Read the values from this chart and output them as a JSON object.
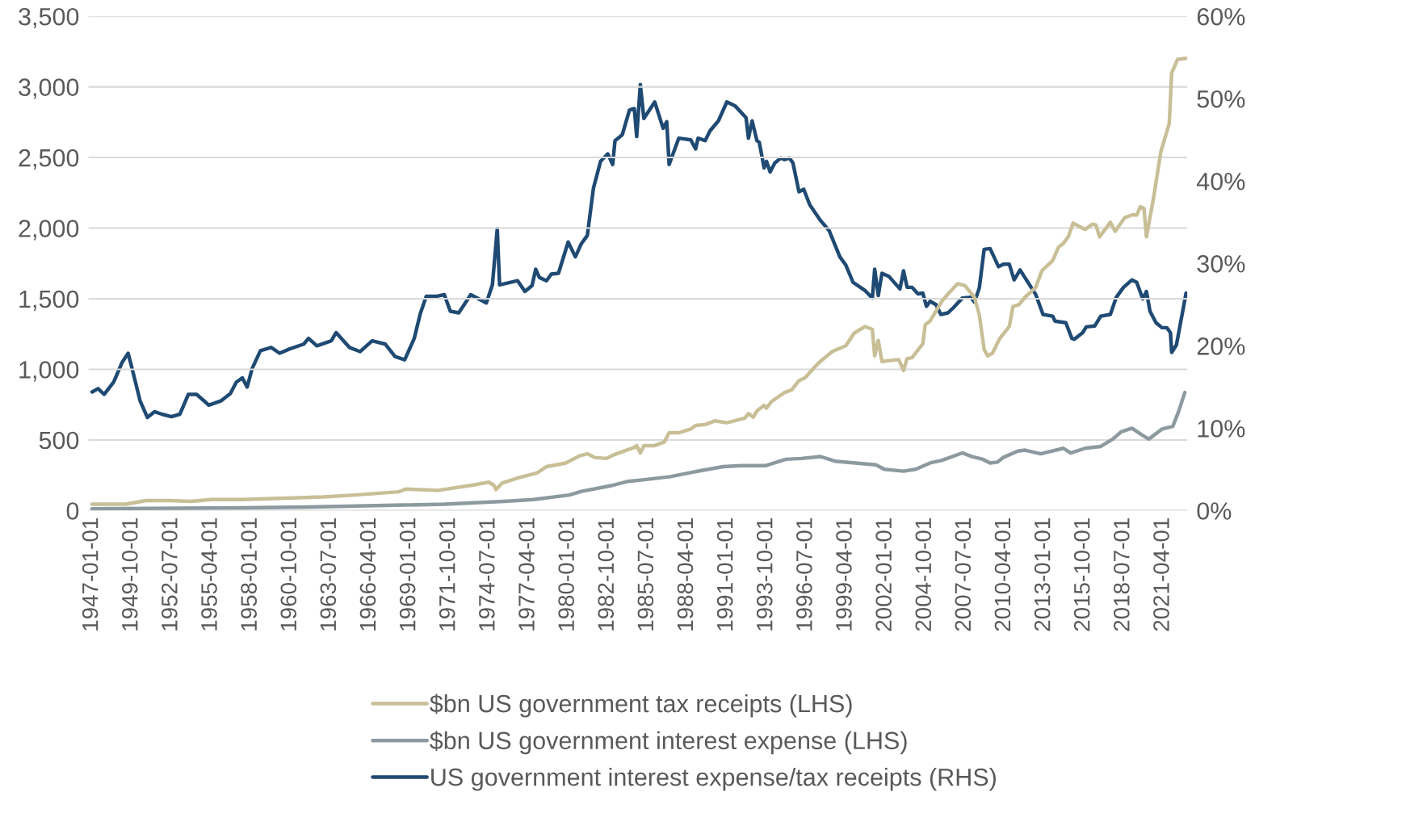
{
  "chart_data": {
    "type": "line",
    "xlim": [
      "1946-10",
      "2022-12"
    ],
    "xticks": [
      "1947-01-01",
      "1949-10-01",
      "1952-07-01",
      "1955-04-01",
      "1958-01-01",
      "1960-10-01",
      "1963-07-01",
      "1966-04-01",
      "1969-01-01",
      "1971-10-01",
      "1974-07-01",
      "1977-04-01",
      "1980-01-01",
      "1982-10-01",
      "1985-07-01",
      "1988-04-01",
      "1991-01-01",
      "1993-10-01",
      "1996-07-01",
      "1999-04-01",
      "2002-01-01",
      "2004-10-01",
      "2007-07-01",
      "2010-04-01",
      "2013-01-01",
      "2015-10-01",
      "2018-07-01",
      "2021-04-01"
    ],
    "ylim": [
      0,
      3500
    ],
    "yticks": [
      0,
      500,
      {
        "value": 1000,
        "label": "1,000"
      },
      {
        "value": 1500,
        "label": "1,500"
      },
      {
        "value": 2000,
        "label": "2,000"
      },
      {
        "value": 2500,
        "label": "2,500"
      },
      {
        "value": 3000,
        "label": "3,000"
      },
      {
        "value": 3500,
        "label": "3,500"
      }
    ],
    "y2lim": [
      0,
      60
    ],
    "y2ticks": [
      {
        "value": 0,
        "label": "0%"
      },
      {
        "value": 10,
        "label": "10%"
      },
      {
        "value": 20,
        "label": "20%"
      },
      {
        "value": 30,
        "label": "30%"
      },
      {
        "value": 40,
        "label": "40%"
      },
      {
        "value": 50,
        "label": "50%"
      },
      {
        "value": 60,
        "label": "60%"
      }
    ],
    "grid": "y",
    "legend": "bottom",
    "line_style": "solid",
    "marker": "none",
    "series": [
      {
        "name": "$bn US government tax receipts (LHS)",
        "color": "#c8bf97",
        "axis": "y",
        "x": [
          "1947-01",
          "1949-05",
          "1950-10",
          "1952-06",
          "1953-11",
          "1955-04",
          "1957-06",
          "1959-03",
          "1963-01",
          "1965-04",
          "1968-04",
          "1968-10",
          "1971-01",
          "1973-06",
          "1974-07",
          "1974-11",
          "1975-01",
          "1975-06",
          "1976-08",
          "1977-11",
          "1978-07",
          "1979-11",
          "1980-11",
          "1981-05",
          "1981-11",
          "1982-09",
          "1983-03",
          "1984-08",
          "1984-10",
          "1985-01",
          "1985-04",
          "1986-01",
          "1986-09",
          "1987-01",
          "1987-09",
          "1988-07",
          "1988-11",
          "1989-07",
          "1990-03",
          "1991-01",
          "1992-04",
          "1992-07",
          "1992-11",
          "1993-02",
          "1993-08",
          "1993-10",
          "1994-02",
          "1995-01",
          "1995-07",
          "1996-01",
          "1996-06",
          "1997-05",
          "1998-05",
          "1999-04",
          "1999-11",
          "2000-08",
          "2001-02",
          "2001-04",
          "2001-07",
          "2001-10",
          "2002-12",
          "2003-04",
          "2003-07",
          "2003-11",
          "2004-08",
          "2004-10",
          "2005-02",
          "2005-12",
          "2006-06",
          "2007-01",
          "2007-07",
          "2008-03",
          "2008-07",
          "2008-11",
          "2009-02",
          "2009-06",
          "2009-12",
          "2010-08",
          "2010-11",
          "2011-04",
          "2011-09",
          "2012-06",
          "2012-11",
          "2013-08",
          "2014-01",
          "2014-05",
          "2014-09",
          "2015-01",
          "2015-11",
          "2016-05",
          "2016-08",
          "2016-11",
          "2017-08",
          "2017-12",
          "2018-08",
          "2019-02",
          "2019-06",
          "2019-09",
          "2019-12",
          "2020-02",
          "2020-08",
          "2021-02",
          "2021-09",
          "2021-11",
          "2022-04",
          "2022-11"
        ],
        "values": [
          45,
          45,
          71,
          71,
          65,
          78,
          78,
          84,
          97,
          110,
          133,
          152,
          143,
          181,
          201,
          181,
          149,
          194,
          233,
          266,
          311,
          337,
          389,
          402,
          376,
          369,
          395,
          447,
          460,
          408,
          460,
          460,
          486,
          551,
          551,
          577,
          603,
          609,
          635,
          622,
          655,
          687,
          661,
          706,
          745,
          726,
          771,
          836,
          855,
          920,
          940,
          1043,
          1128,
          1167,
          1257,
          1303,
          1283,
          1095,
          1205,
          1056,
          1069,
          992,
          1076,
          1082,
          1180,
          1316,
          1342,
          1484,
          1543,
          1607,
          1594,
          1510,
          1387,
          1141,
          1095,
          1115,
          1218,
          1303,
          1445,
          1458,
          1510,
          1581,
          1698,
          1769,
          1866,
          1892,
          1938,
          2035,
          1990,
          2028,
          2022,
          1938,
          2041,
          1977,
          2074,
          2093,
          2093,
          2152,
          2139,
          1938,
          2216,
          2541,
          2741,
          3098,
          3195,
          3202
        ]
      },
      {
        "name": "$bn US government interest expense (LHS)",
        "color": "#8c9aa0",
        "axis": "y",
        "x": [
          "1947-01",
          "1957-06",
          "1962-01",
          "1968-09",
          "1971-06",
          "1975-08",
          "1977-08",
          "1980-02",
          "1980-12",
          "1982-12",
          "1984-03",
          "1985-06",
          "1987-02",
          "1988-05",
          "1989-05",
          "1990-10",
          "1992-01",
          "1993-09",
          "1995-02",
          "1996-03",
          "1997-07",
          "1998-07",
          "2001-05",
          "2001-12",
          "2003-04",
          "2004-02",
          "2005-02",
          "2005-12",
          "2007-05",
          "2008-01",
          "2008-10",
          "2009-04",
          "2009-10",
          "2010-03",
          "2011-03",
          "2011-09",
          "2012-10",
          "2014-05",
          "2014-11",
          "2015-11",
          "2016-12",
          "2017-10",
          "2018-05",
          "2019-02",
          "2019-10",
          "2020-04",
          "2021-03",
          "2021-12",
          "2022-05",
          "2022-10"
        ],
        "values": [
          13,
          19,
          25,
          39,
          45,
          65,
          78,
          110,
          136,
          175,
          207,
          220,
          240,
          266,
          285,
          311,
          318,
          318,
          363,
          369,
          382,
          350,
          324,
          292,
          279,
          292,
          337,
          356,
          408,
          382,
          363,
          337,
          343,
          376,
          421,
          428,
          402,
          441,
          408,
          441,
          454,
          506,
          557,
          583,
          538,
          506,
          577,
          596,
          706,
          836
        ]
      },
      {
        "name": "US government interest expense/tax receipts (RHS)",
        "color": "#1f4a73",
        "axis": "y2",
        "x": [
          "1947-01",
          "1947-06",
          "1947-11",
          "1948-07",
          "1949-02",
          "1949-07",
          "1949-10",
          "1950-05",
          "1950-11",
          "1951-05",
          "1951-11",
          "1952-07",
          "1953-02",
          "1953-09",
          "1954-04",
          "1955-02",
          "1955-12",
          "1956-08",
          "1957-01",
          "1957-06",
          "1957-10",
          "1958-02",
          "1958-09",
          "1959-06",
          "1960-01",
          "1960-09",
          "1961-09",
          "1962-01",
          "1962-08",
          "1963-08",
          "1963-12",
          "1964-11",
          "1965-08",
          "1966-06",
          "1967-05",
          "1968-01",
          "1968-09",
          "1969-05",
          "1969-10",
          "1970-03",
          "1970-11",
          "1971-06",
          "1971-11",
          "1972-06",
          "1973-04",
          "1974-05",
          "1974-10",
          "1975-02",
          "1975-04",
          "1976-07",
          "1977-01",
          "1977-07",
          "1977-10",
          "1978-01",
          "1978-07",
          "1978-11",
          "1979-05",
          "1980-01",
          "1980-07",
          "1980-12",
          "1981-05",
          "1981-10",
          "1982-04",
          "1982-10",
          "1983-02",
          "1983-04",
          "1983-10",
          "1984-04",
          "1984-08",
          "1984-10",
          "1985-01",
          "1985-04",
          "1986-01",
          "1986-08",
          "1986-11",
          "1987-01",
          "1987-09",
          "1988-07",
          "1988-11",
          "1989-01",
          "1989-07",
          "1989-11",
          "1990-06",
          "1991-01",
          "1991-08",
          "1992-05",
          "1992-07",
          "1992-10",
          "1993-02",
          "1993-04",
          "1993-08",
          "1993-10",
          "1994-01",
          "1994-05",
          "1994-10",
          "1995-01",
          "1995-05",
          "1995-08",
          "1996-01",
          "1996-05",
          "1996-10",
          "1997-07",
          "1998-02",
          "1998-11",
          "1999-04",
          "1999-10",
          "2000-08",
          "2001-02",
          "2001-04",
          "2001-07",
          "2001-10",
          "2002-04",
          "2003-01",
          "2003-04",
          "2003-07",
          "2003-11",
          "2004-04",
          "2004-08",
          "2004-11",
          "2005-02",
          "2005-07",
          "2005-11",
          "2006-05",
          "2006-10",
          "2007-05",
          "2007-12",
          "2008-03",
          "2008-07",
          "2008-11",
          "2009-04",
          "2009-11",
          "2010-03",
          "2010-08",
          "2010-12",
          "2011-05",
          "2012-06",
          "2012-12",
          "2013-08",
          "2013-10",
          "2014-07",
          "2014-12",
          "2015-02",
          "2015-09",
          "2015-12",
          "2016-07",
          "2016-12",
          "2017-08",
          "2018-01",
          "2018-07",
          "2019-02",
          "2019-06",
          "2019-11",
          "2020-02",
          "2020-05",
          "2020-10",
          "2021-03",
          "2021-07",
          "2021-10",
          "2021-11",
          "2022-03",
          "2022-11"
        ],
        "values": [
          14.4,
          14.8,
          14.1,
          15.6,
          18.0,
          19.1,
          17.4,
          13.3,
          11.3,
          12.0,
          11.7,
          11.4,
          11.7,
          14.1,
          14.1,
          12.8,
          13.3,
          14.2,
          15.6,
          16.1,
          15.0,
          17.2,
          19.4,
          19.8,
          19.1,
          19.6,
          20.2,
          20.9,
          20.0,
          20.6,
          21.6,
          19.8,
          19.3,
          20.6,
          20.2,
          18.7,
          18.3,
          20.9,
          23.9,
          26.0,
          26.0,
          26.2,
          24.2,
          24.0,
          26.2,
          25.2,
          27.4,
          34.2,
          27.4,
          27.9,
          26.6,
          27.3,
          29.3,
          28.3,
          27.9,
          28.7,
          28.8,
          32.6,
          30.8,
          32.4,
          33.4,
          39.1,
          42.4,
          43.3,
          42.0,
          44.9,
          45.6,
          48.6,
          48.8,
          45.4,
          51.7,
          47.6,
          49.6,
          46.4,
          47.2,
          42.0,
          45.2,
          45.0,
          43.9,
          45.2,
          44.9,
          46.1,
          47.3,
          49.6,
          49.1,
          47.7,
          45.2,
          47.3,
          44.9,
          44.7,
          41.6,
          42.4,
          41.1,
          42.2,
          42.8,
          42.6,
          42.8,
          42.2,
          38.7,
          39.0,
          37.1,
          35.2,
          34.0,
          30.8,
          29.8,
          27.7,
          26.7,
          25.8,
          29.3,
          26.1,
          28.8,
          28.4,
          26.9,
          29.1,
          27.1,
          27.1,
          26.3,
          26.4,
          24.8,
          25.4,
          25.0,
          23.8,
          24.0,
          24.7,
          25.8,
          25.9,
          25.3,
          27.0,
          31.7,
          31.8,
          29.6,
          29.9,
          29.9,
          28.0,
          29.2,
          26.2,
          23.8,
          23.6,
          23.0,
          22.8,
          20.9,
          20.8,
          21.6,
          22.3,
          22.4,
          23.6,
          23.8,
          25.9,
          27.1,
          28.0,
          27.7,
          25.7,
          26.6,
          24.2,
          22.8,
          22.2,
          22.2,
          21.6,
          19.2,
          20.1,
          26.4
        ]
      }
    ]
  }
}
